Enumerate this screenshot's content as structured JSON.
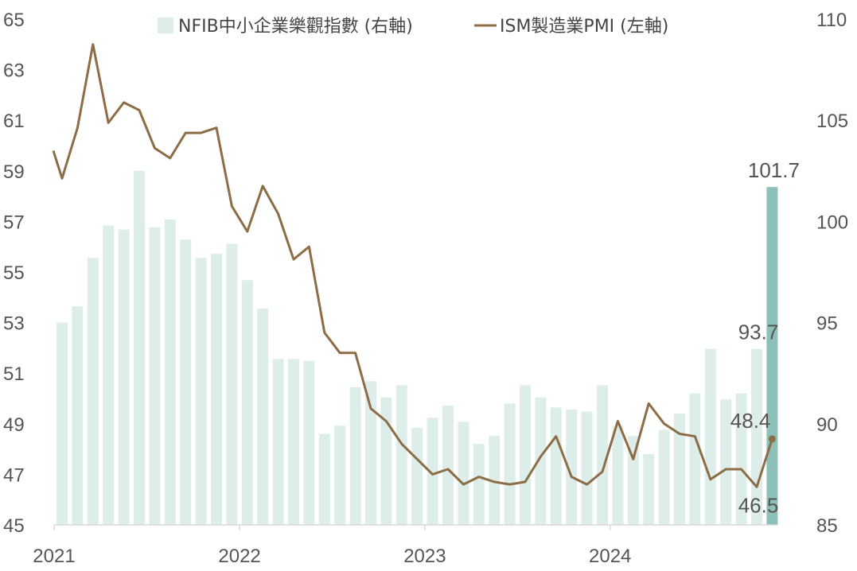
{
  "chart_data": {
    "type": "bar+line",
    "x_axis": {
      "tick_labels": [
        "2021",
        "2022",
        "2023",
        "2024"
      ],
      "range": [
        "2021-01",
        "2024-11"
      ]
    },
    "y_left": {
      "ticks": [
        45,
        47,
        49,
        51,
        53,
        55,
        57,
        59,
        61,
        63,
        65
      ],
      "ylim": [
        45,
        65
      ]
    },
    "y_right": {
      "ticks": [
        85,
        90,
        95,
        100,
        105,
        110
      ],
      "ylim": [
        85,
        110
      ]
    },
    "legend": {
      "position": "top-center"
    },
    "months": [
      "2021-01",
      "2021-02",
      "2021-03",
      "2021-04",
      "2021-05",
      "2021-06",
      "2021-07",
      "2021-08",
      "2021-09",
      "2021-10",
      "2021-11",
      "2021-12",
      "2022-01",
      "2022-02",
      "2022-03",
      "2022-04",
      "2022-05",
      "2022-06",
      "2022-07",
      "2022-08",
      "2022-09",
      "2022-10",
      "2022-11",
      "2022-12",
      "2023-01",
      "2023-02",
      "2023-03",
      "2023-04",
      "2023-05",
      "2023-06",
      "2023-07",
      "2023-08",
      "2023-09",
      "2023-10",
      "2023-11",
      "2023-12",
      "2024-01",
      "2024-02",
      "2024-03",
      "2024-04",
      "2024-05",
      "2024-06",
      "2024-07",
      "2024-08",
      "2024-09",
      "2024-10",
      "2024-11"
    ],
    "series": [
      {
        "name": "NFIB中小企業樂觀指數 (右軸)",
        "type": "bar",
        "axis": "right",
        "color": "#DDEEEA",
        "highlight_color": "#8CC0B9",
        "values": [
          95.0,
          95.8,
          98.2,
          99.8,
          99.6,
          102.5,
          99.7,
          100.1,
          99.1,
          98.2,
          98.4,
          98.9,
          97.1,
          95.7,
          93.2,
          93.2,
          93.1,
          89.5,
          89.9,
          91.8,
          92.1,
          91.3,
          91.9,
          89.8,
          90.3,
          90.9,
          90.1,
          89.0,
          89.4,
          91.0,
          91.9,
          91.3,
          90.8,
          90.7,
          90.6,
          91.9,
          89.9,
          89.4,
          88.5,
          89.7,
          90.5,
          91.5,
          93.7,
          91.2,
          91.5,
          93.7,
          101.7
        ],
        "data_labels": [
          {
            "month": "2024-10",
            "text": "93.7"
          },
          {
            "month": "2024-11",
            "text": "101.7"
          }
        ]
      },
      {
        "name": "ISM製造業PMI (左軸)",
        "type": "line",
        "axis": "left",
        "color": "#8C6D45",
        "values": [
          59.8,
          58.7,
          60.7,
          64.0,
          60.9,
          61.7,
          61.4,
          59.9,
          59.5,
          60.5,
          60.5,
          60.7,
          57.6,
          56.6,
          58.4,
          57.3,
          55.5,
          56.0,
          52.6,
          51.8,
          51.8,
          49.6,
          49.1,
          48.2,
          47.6,
          47.0,
          47.2,
          46.6,
          46.9,
          46.7,
          46.6,
          46.7,
          47.7,
          48.5,
          46.9,
          46.6,
          47.1,
          49.1,
          47.6,
          49.8,
          49.0,
          48.6,
          48.5,
          46.8,
          47.2,
          47.2,
          46.5,
          48.4
        ],
        "x_start": "2020-12",
        "data_labels": [
          {
            "month": "2024-10",
            "text": "46.5"
          },
          {
            "month": "2024-11",
            "text": "48.4"
          }
        ]
      }
    ]
  }
}
